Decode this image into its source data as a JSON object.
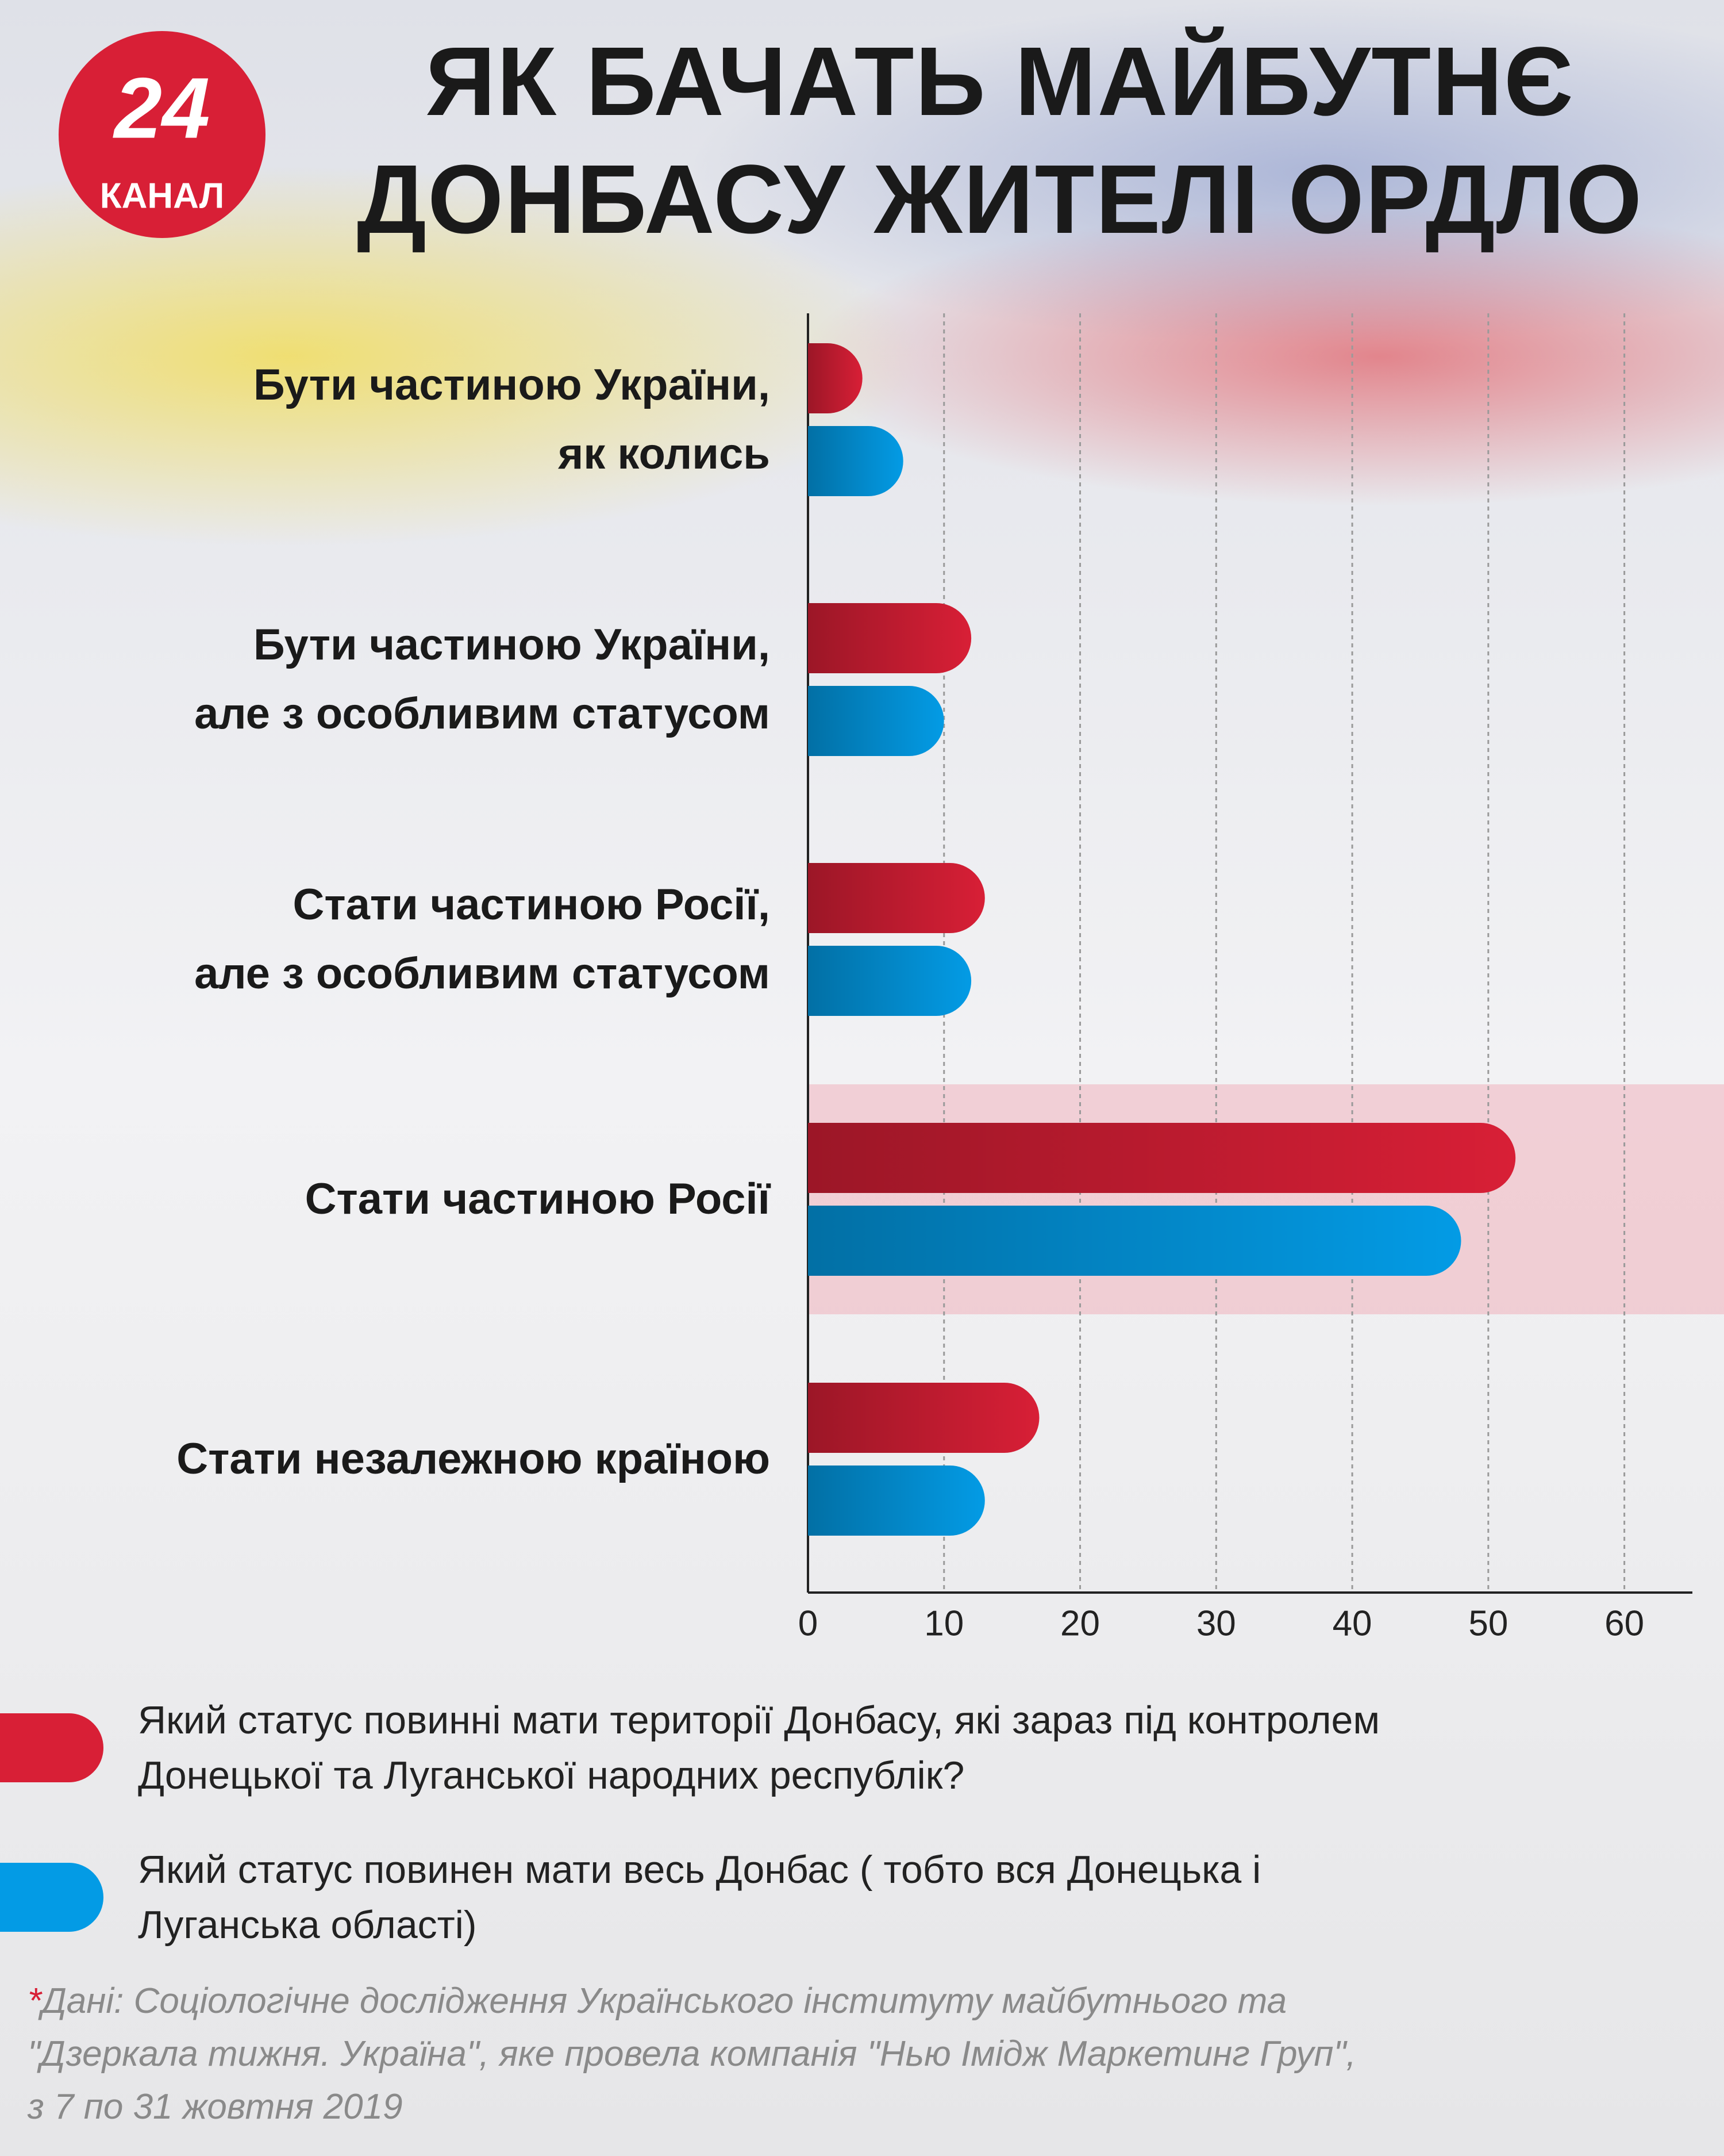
{
  "logo": {
    "number": "24",
    "name": "КАНАЛ"
  },
  "chart_data": {
    "type": "barh",
    "title": "ЯК БАЧАТЬ МАЙБУТНЄ\nДОНБАСУ ЖИТЕЛІ ОРДЛО",
    "categories": [
      "Бути частиною України,\nяк колись",
      "Бути частиною України,\nале з особливим статусом",
      "Стати частиною Росії,\nале з особливим статусом",
      "Стати частиною Росії",
      "Стати незалежною країною"
    ],
    "series": [
      {
        "name": "Який статус повинні мати території Донбасу, які зараз під контролем\nДонецької та Луганської народних республік?",
        "color": "#d81f36",
        "values": [
          4,
          12,
          13,
          52,
          17
        ]
      },
      {
        "name": "Який статус повинен мати весь Донбас ( тобто вся Донецька і\nЛуганська області)",
        "color": "#039be5",
        "values": [
          7,
          10,
          12,
          48,
          13
        ]
      }
    ],
    "xlim": [
      0,
      65
    ],
    "xticks": [
      0,
      10,
      20,
      30,
      40,
      50,
      60
    ],
    "grid": true,
    "highlight_index": 3
  },
  "source_marker": "*",
  "source": "Дані: Соціологічне дослідження Українського інституту майбутнього та\n\"Дзеркала тижня. Україна\", яке провела компанія \"Нью Імідж Маркетинг Груп\",\nз 7 по 31 жовтня 2019"
}
